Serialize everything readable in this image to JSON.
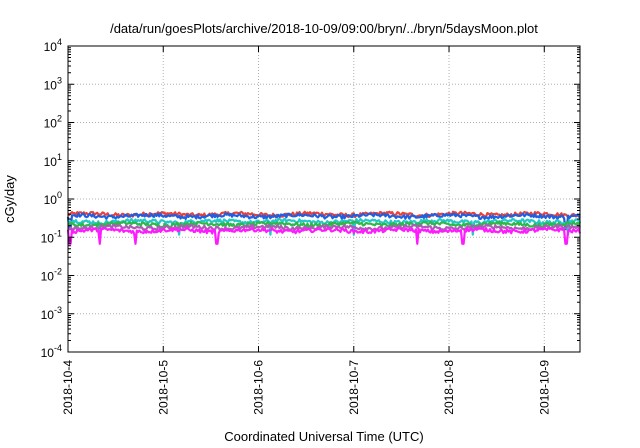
{
  "chart_data": {
    "type": "line",
    "title": "/data/run/goesPlots/archive/2018-10-09/09:00/bryn/../bryn/5daysMoon.plot",
    "xlabel": "Coordinated Universal Time (UTC)",
    "ylabel": "cGy/day",
    "yscale": "log",
    "ylim": [
      0.0001,
      10000
    ],
    "y_ticks": [
      {
        "base": "10",
        "exp": "-4"
      },
      {
        "base": "10",
        "exp": "-3"
      },
      {
        "base": "10",
        "exp": "-2"
      },
      {
        "base": "10",
        "exp": "-1"
      },
      {
        "base": "10",
        "exp": "0"
      },
      {
        "base": "10",
        "exp": "1"
      },
      {
        "base": "10",
        "exp": "2"
      },
      {
        "base": "10",
        "exp": "3"
      },
      {
        "base": "10",
        "exp": "4"
      }
    ],
    "xlim": [
      "2018-10-04 00:00",
      "2018-10-09 09:00"
    ],
    "x_ticks": [
      "2018-10-4",
      "2018-10-5",
      "2018-10-6",
      "2018-10-7",
      "2018-10-8",
      "2018-10-9"
    ],
    "grid": true,
    "legend": "none",
    "series": [
      {
        "color": "#e8403a",
        "level": 0.4,
        "dips": []
      },
      {
        "color": "#1f5fe0",
        "level": 0.36,
        "dips": [
          "2018-10-04 00:30",
          "2018-10-09 05:30"
        ]
      },
      {
        "color": "#22c9c9",
        "level": 0.26,
        "dips": [
          "2018-10-04 08:00",
          "2018-10-05 04:00",
          "2018-10-06 03:00",
          "2018-10-07 00:00",
          "2018-10-08 06:00",
          "2018-10-09 06:00"
        ]
      },
      {
        "color": "#2db84a",
        "level": 0.22,
        "dips": []
      },
      {
        "color": "#b05ab8",
        "level": 0.18,
        "dips": []
      },
      {
        "color": "#ff1aff",
        "level": 0.15,
        "dips": [
          "2018-10-04 00:30",
          "2018-10-04 08:00",
          "2018-10-04 17:00",
          "2018-10-05 13:30",
          "2018-10-07 16:00",
          "2018-10-08 03:30",
          "2018-10-09 05:30"
        ]
      }
    ]
  }
}
